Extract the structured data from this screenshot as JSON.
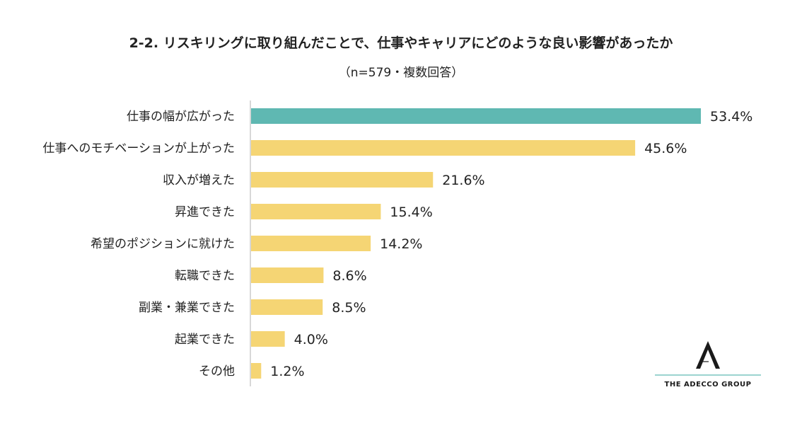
{
  "title": "2-2. リスキリングに取り組んだことで、仕事やキャリアにどのような良い影響があったか",
  "subtitle": "（n=579・複数回答）",
  "logo": {
    "text": "THE ADECCO GROUP",
    "icon": "adecco-a-icon"
  },
  "colors": {
    "highlight": "#5fb8b2",
    "bar": "#f5d574",
    "axis": "#b0b0b0",
    "logo_line": "#7cc6c0"
  },
  "chart_data": {
    "type": "bar",
    "orientation": "horizontal",
    "title": "2-2. リスキリングに取り組んだことで、仕事やキャリアにどのような良い影響があったか",
    "subtitle": "（n=579・複数回答）",
    "categories": [
      "仕事の幅が広がった",
      "仕事へのモチベーションが上がった",
      "収入が増えた",
      "昇進できた",
      "希望のポジションに就けた",
      "転職できた",
      "副業・兼業できた",
      "起業できた",
      "その他"
    ],
    "values": [
      53.4,
      45.6,
      21.6,
      15.4,
      14.2,
      8.6,
      8.5,
      4.0,
      1.2
    ],
    "value_labels": [
      "53.4%",
      "45.6%",
      "21.6%",
      "15.4%",
      "14.2%",
      "8.6%",
      "8.5%",
      "4.0%",
      "1.2%"
    ],
    "unit": "%",
    "highlight_index": 0,
    "xlim": [
      0,
      60
    ],
    "grid": false,
    "legend": "none",
    "xlabel": "",
    "ylabel": ""
  }
}
